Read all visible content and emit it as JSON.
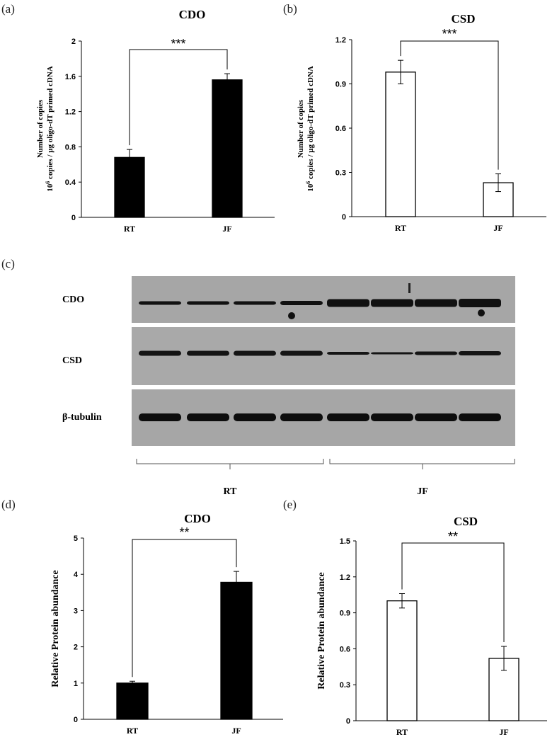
{
  "panels": {
    "a": "(a)",
    "b": "(b)",
    "c": "(c)",
    "d": "(d)",
    "e": "(e)"
  },
  "blot": {
    "rows": [
      "CDO",
      "CSD",
      "β-tubulin"
    ],
    "groups": [
      "RT",
      "JF"
    ]
  },
  "chart_data": [
    {
      "id": "a",
      "type": "bar",
      "title": "CDO",
      "ylabel_line1": "Number of copies",
      "ylabel_line2": "10",
      "ylabel_sup": "6",
      "ylabel_line2_rest": " copies / µg oligo-dT primed cDNA",
      "categories": [
        "RT",
        "JF"
      ],
      "values": [
        0.68,
        1.56
      ],
      "errors": [
        0.09,
        0.07
      ],
      "ylim": [
        0,
        2
      ],
      "yticks": [
        "0",
        "0.4",
        "0.8",
        "1.2",
        "1.6",
        "2"
      ],
      "yticks_values": [
        0,
        0.4,
        0.8,
        1.2,
        1.6,
        2
      ],
      "fill": "#000000",
      "significance": "***"
    },
    {
      "id": "b",
      "type": "bar",
      "title": "CSD",
      "ylabel_line1": "Number of copies",
      "ylabel_line2": "10",
      "ylabel_sup": "6",
      "ylabel_line2_rest": " copies / µg oligo-dT primed cDNA",
      "categories": [
        "RT",
        "JF"
      ],
      "values": [
        0.98,
        0.23
      ],
      "errors": [
        0.08,
        0.06
      ],
      "ylim": [
        0,
        1.2
      ],
      "yticks": [
        "0",
        "0.3",
        "0.6",
        "0.9",
        "1.2"
      ],
      "yticks_values": [
        0,
        0.3,
        0.6,
        0.9,
        1.2
      ],
      "fill": "#ffffff",
      "significance": "***"
    },
    {
      "id": "d",
      "type": "bar",
      "title": "CDO",
      "ylabel": "Relative Protein abundance",
      "categories": [
        "RT",
        "JF"
      ],
      "values": [
        1.0,
        3.78
      ],
      "errors": [
        0.05,
        0.3
      ],
      "ylim": [
        0,
        5
      ],
      "yticks": [
        "0",
        "1",
        "2",
        "3",
        "4",
        "5"
      ],
      "yticks_values": [
        0,
        1,
        2,
        3,
        4,
        5
      ],
      "fill": "#000000",
      "significance": "**"
    },
    {
      "id": "e",
      "type": "bar",
      "title": "CSD",
      "ylabel": "Relative Protein abundance",
      "categories": [
        "RT",
        "JF"
      ],
      "values": [
        1.0,
        0.52
      ],
      "errors": [
        0.06,
        0.1
      ],
      "ylim": [
        0,
        1.5
      ],
      "yticks": [
        "0",
        "0.3",
        "0.6",
        "0.9",
        "1.2",
        "1.5"
      ],
      "yticks_values": [
        0,
        0.3,
        0.6,
        0.9,
        1.2,
        1.5
      ],
      "fill": "#ffffff",
      "significance": "**"
    }
  ]
}
